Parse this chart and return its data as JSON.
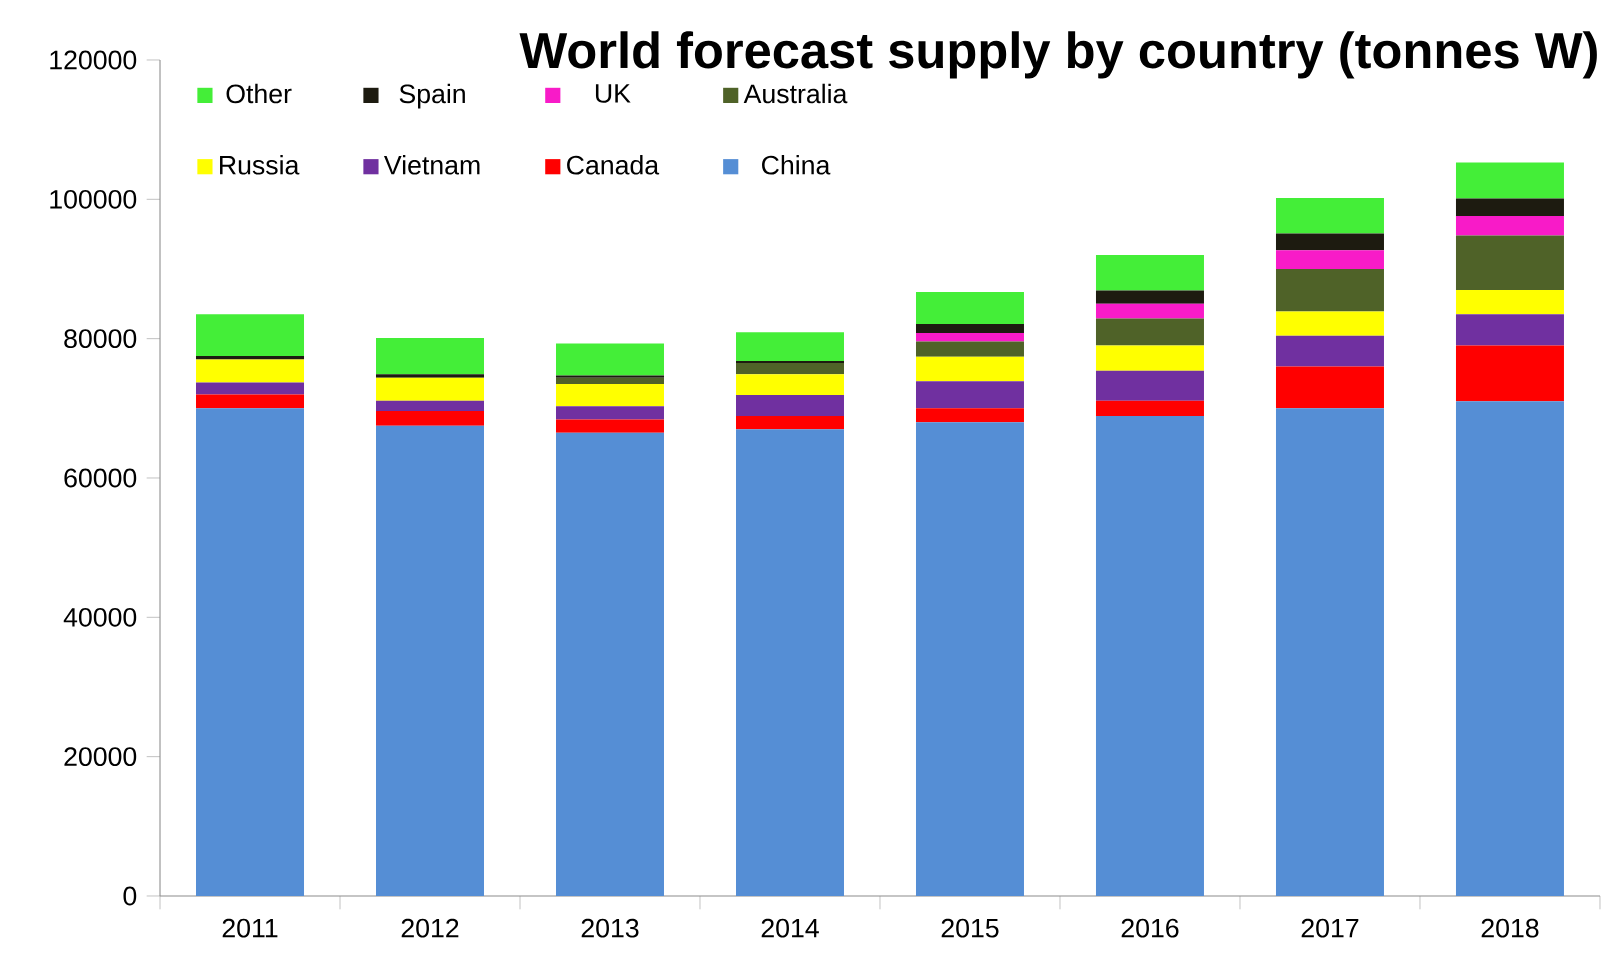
{
  "chart_data": {
    "type": "bar",
    "title": "World forecast supply by country (tonnes W)",
    "stacked": true,
    "legend": "top left",
    "grid": false,
    "categories": [
      "2011",
      "2012",
      "2013",
      "2014",
      "2015",
      "2016",
      "2017",
      "2018"
    ],
    "ylim": [
      0,
      120000
    ],
    "yticks": [
      0,
      20000,
      40000,
      60000,
      80000,
      100000,
      120000
    ],
    "series": [
      {
        "name": "China",
        "color": "#558ed5",
        "values": [
          70000,
          67500,
          66500,
          67000,
          68000,
          68900,
          70000,
          71000
        ]
      },
      {
        "name": "Canada",
        "color": "#ff0000",
        "values": [
          2000,
          2100,
          1900,
          1900,
          2000,
          2200,
          6000,
          8000
        ]
      },
      {
        "name": "Vietnam",
        "color": "#7030a0",
        "values": [
          1700,
          1500,
          1900,
          3000,
          3900,
          4300,
          4400,
          4500
        ]
      },
      {
        "name": "Russia",
        "color": "#ffff00",
        "values": [
          3300,
          3300,
          3200,
          3000,
          3500,
          3600,
          3500,
          3500
        ]
      },
      {
        "name": "Australia",
        "color": "#4f6228",
        "values": [
          0,
          0,
          900,
          1600,
          2200,
          3900,
          6100,
          7800
        ]
      },
      {
        "name": "UK",
        "color": "#f81bc8",
        "values": [
          0,
          0,
          0,
          0,
          1200,
          2100,
          2700,
          2800
        ]
      },
      {
        "name": "Spain",
        "color": "#1d1b10",
        "values": [
          500,
          500,
          300,
          300,
          1300,
          1900,
          2400,
          2500
        ]
      },
      {
        "name": "Other",
        "color": "#44ee38",
        "values": [
          6000,
          5200,
          4600,
          4100,
          4600,
          5100,
          5100,
          5200
        ]
      }
    ]
  }
}
